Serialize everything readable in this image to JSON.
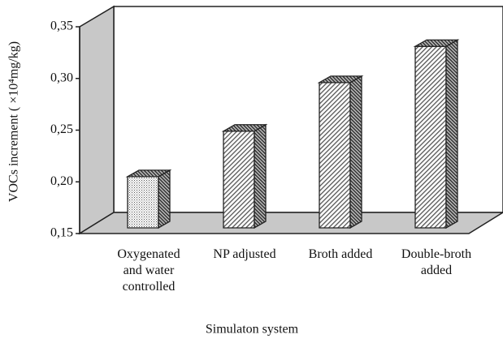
{
  "chart_data": {
    "type": "bar3d",
    "categories": [
      "Oxygenated and water controlled",
      "NP adjusted",
      "Broth added",
      "Double-broth added"
    ],
    "values": [
      0.205,
      0.249,
      0.296,
      0.331
    ],
    "ylim": [
      0.15,
      0.35
    ],
    "yticks": [
      {
        "value": 0.15,
        "label": "0,15"
      },
      {
        "value": 0.2,
        "label": "0,20"
      },
      {
        "value": 0.25,
        "label": "0,25"
      },
      {
        "value": 0.3,
        "label": "0,30"
      },
      {
        "value": 0.35,
        "label": "0,35"
      }
    ],
    "y_label": "VOCs increment ( ×10⁴mg/kg)",
    "x_label": "Simulaton system"
  }
}
